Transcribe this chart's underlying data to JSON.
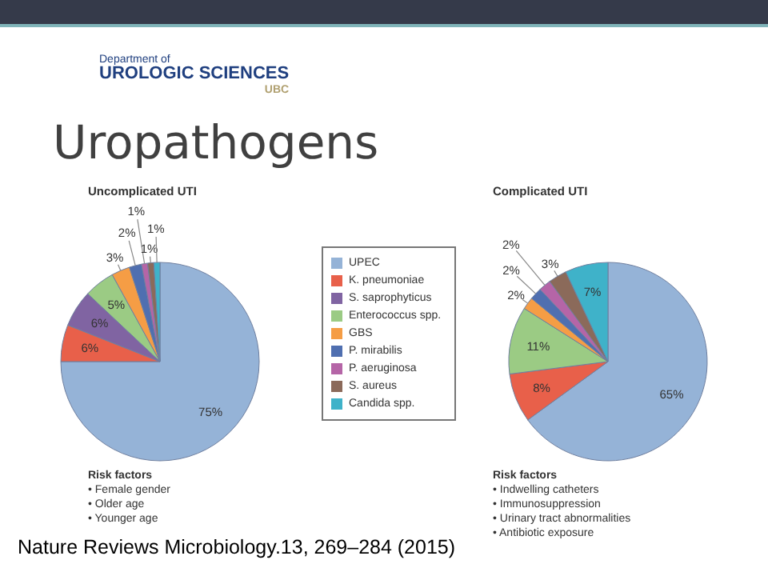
{
  "chart_data": [
    {
      "type": "other",
      "title": "Uropathogens",
      "annotations": [
        "Department of",
        "UROLOGIC SCIENCES",
        "UBC",
        "Nature Reviews Microbiology.13, 269–284 (2015)"
      ]
    },
    {
      "type": "pie",
      "title": "Uncomplicated UTI",
      "categories": [
        "UPEC",
        "K. pneumoniae",
        "S. saprophyticus",
        "Enterococcus spp.",
        "GBS",
        "P. mirabilis",
        "P. aeruginosa",
        "S. aureus",
        "Candida spp."
      ],
      "values": [
        75,
        6,
        6,
        5,
        3,
        2,
        1,
        1,
        1
      ],
      "value_labels": [
        "75%",
        "6%",
        "6%",
        "5%",
        "3%",
        "2%",
        "1%",
        "1%",
        "1%"
      ],
      "colors": [
        "#95b3d7",
        "#e8604a",
        "#8064a2",
        "#9bcb84",
        "#f59d45",
        "#4f6fb0",
        "#b565a7",
        "#8b6a5a",
        "#3fb2c9"
      ],
      "legend": "right",
      "annotations": [
        "Risk factors",
        "• Female gender",
        "• Older age",
        "• Younger age"
      ]
    },
    {
      "type": "pie",
      "title": "Complicated UTI",
      "categories": [
        null,
        null,
        null,
        null,
        null,
        null,
        null,
        null
      ],
      "values": [
        65,
        8,
        11,
        2,
        2,
        2,
        3,
        7
      ],
      "value_labels": [
        "65%",
        "8%",
        "11%",
        "2%",
        "2%",
        "2%",
        "3%",
        "7%"
      ],
      "colors": [
        "#95b3d7",
        "#e8604a",
        "#9bcb84",
        "#f59d45",
        "#4f6fb0",
        "#b565a7",
        "#8b6a5a",
        "#3fb2c9"
      ],
      "legend": false,
      "annotations": [
        "Risk factors",
        "• Indwelling catheters",
        "• Immunosuppression",
        "• Urinary tract abnormalities",
        "• Antibiotic exposure"
      ]
    }
  ]
}
